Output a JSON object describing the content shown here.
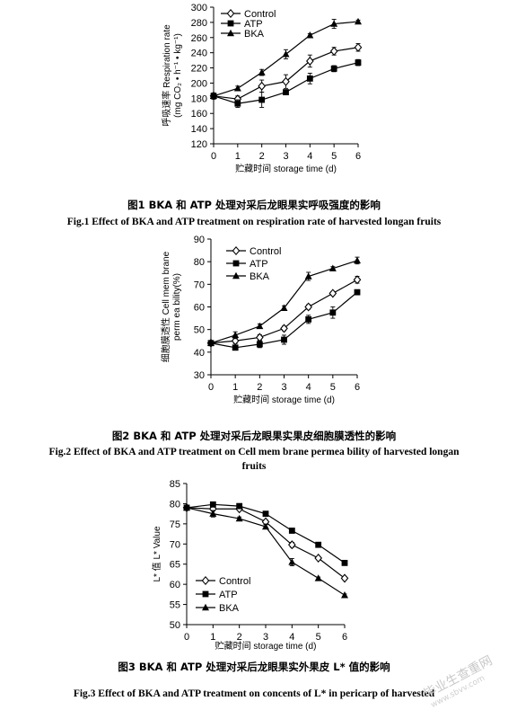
{
  "chart_data": [
    {
      "type": "line",
      "ylabel": "呼吸速率 Respiration rate",
      "ylabel2": "(mg CO₂ • h⁻¹ • kg⁻¹)",
      "xlabel": "贮藏时间 storage time (d)",
      "x": [
        0,
        1,
        2,
        3,
        4,
        5,
        6
      ],
      "ylim": [
        120,
        300
      ],
      "yticks": [
        120,
        140,
        160,
        180,
        200,
        220,
        240,
        260,
        280,
        300
      ],
      "legend_position": "top-left",
      "series": [
        {
          "name": "Control",
          "marker": "diamond",
          "values": [
            183,
            179,
            196,
            202,
            229,
            242,
            247
          ],
          "err": [
            4,
            4,
            8,
            9,
            8,
            5,
            5
          ]
        },
        {
          "name": "ATP",
          "marker": "square",
          "values": [
            183,
            173,
            178,
            188,
            206,
            219,
            227
          ],
          "err": [
            4,
            5,
            10,
            3,
            7,
            4,
            4
          ]
        },
        {
          "name": "BKA",
          "marker": "triangle",
          "values": [
            183,
            193,
            214,
            238,
            263,
            278,
            281
          ],
          "err": [
            4,
            3,
            4,
            6,
            2,
            6,
            2
          ]
        }
      ]
    },
    {
      "type": "line",
      "ylabel": "细胞膜透性 Cell mem brane",
      "ylabel2": "perm ea bility(%)",
      "xlabel": "贮藏时间 storage time (d)",
      "x": [
        0,
        1,
        2,
        3,
        4,
        5,
        6
      ],
      "ylim": [
        30,
        90
      ],
      "yticks": [
        30,
        40,
        50,
        60,
        70,
        80,
        90
      ],
      "legend_position": "top-left",
      "series": [
        {
          "name": "Control",
          "marker": "diamond",
          "values": [
            44,
            45,
            46.5,
            50.5,
            60,
            66,
            72
          ],
          "err": [
            1,
            1.2,
            1.2,
            1,
            1,
            0.8,
            1.5
          ]
        },
        {
          "name": "ATP",
          "marker": "square",
          "values": [
            44,
            42,
            43.5,
            45.5,
            54.5,
            57.5,
            66.5
          ],
          "err": [
            1,
            1,
            1.5,
            2,
            1.8,
            2.5,
            1
          ]
        },
        {
          "name": "BKA",
          "marker": "triangle",
          "values": [
            44,
            47.5,
            51.5,
            59.5,
            73.5,
            77,
            80.5
          ],
          "err": [
            1,
            1.5,
            1,
            1,
            1.8,
            0.8,
            1.5
          ]
        }
      ]
    },
    {
      "type": "line",
      "ylabel": "L* 值 L* Value",
      "xlabel": "贮藏时间 storage time (d)",
      "x": [
        0,
        1,
        2,
        3,
        4,
        5,
        6
      ],
      "ylim": [
        50,
        85
      ],
      "yticks": [
        50,
        55,
        60,
        65,
        70,
        75,
        80,
        85
      ],
      "legend_position": "bottom-left",
      "series": [
        {
          "name": "Control",
          "marker": "diamond",
          "values": [
            79,
            78.7,
            78.7,
            75.5,
            69.8,
            66.5,
            61.5
          ],
          "err": [
            0,
            0.5,
            0.3,
            0.5,
            0.6,
            0.3,
            0.4
          ]
        },
        {
          "name": "ATP",
          "marker": "square",
          "values": [
            79,
            79.8,
            79.4,
            77.5,
            73.3,
            69.8,
            65.3
          ],
          "err": [
            0,
            0.4,
            0.3,
            0.3,
            0.3,
            0.3,
            0.3
          ]
        },
        {
          "name": "BKA",
          "marker": "triangle",
          "values": [
            79,
            77.5,
            76.3,
            74.3,
            65.5,
            61.5,
            57.3
          ],
          "err": [
            0,
            0.8,
            0.4,
            0.5,
            0.9,
            0.3,
            0.3
          ]
        }
      ]
    }
  ],
  "captions": {
    "fig1_cn": "图1 BKA 和 ATP 处理对采后龙眼果实呼吸强度的影响",
    "fig1_en": "Fig.1 Effect of BKA and ATP treatment on respiration rate of harvested longan fruits",
    "fig2_cn": "图2 BKA 和 ATP 处理对采后龙眼果实果皮细胞膜透性的影响",
    "fig2_en": "Fig.2 Effect of BKA and ATP treatment on Cell mem brane permea bility of harvested longan",
    "fig2_en2": "fruits",
    "fig3_cn": "图3 BKA 和 ATP 处理对采后龙眼果实外果皮 L* 值的影响",
    "fig3_en": "Fig.3 Effect of BKA and ATP treatment on concents of L* in pericarp of harvested"
  },
  "watermark": {
    "text": "毕业生查重网",
    "sub": "www.sbvv.com"
  }
}
